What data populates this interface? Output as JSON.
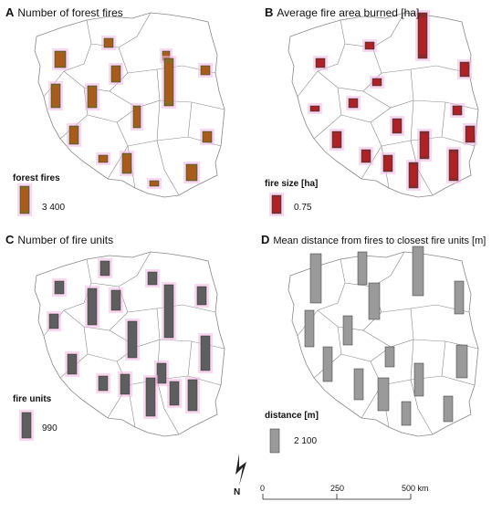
{
  "panels": {
    "a": {
      "letter": "A",
      "title": "Number of forest fires",
      "legend_title": "forest fires",
      "legend_value": "3 400",
      "bar_color": "#8a6a1e",
      "bar_accent": "#d4481a",
      "halo": "#f7b8e6"
    },
    "b": {
      "letter": "B",
      "title": "Average fire area burned [ha]",
      "legend_title": "fire size [ha]",
      "legend_value": "0.75",
      "bar_color": "#8b2a2a",
      "bar_accent": "#e0141e",
      "halo": "#f7b8e6"
    },
    "c": {
      "letter": "C",
      "title": "Number of fire units",
      "legend_title": "fire units",
      "legend_value": "990",
      "bar_color": "#5e5e5e",
      "halo": "#f7b8e6"
    },
    "d": {
      "letter": "D",
      "title": "Mean distance from fires to closest fire units [m]",
      "legend_title": "distance [m]",
      "legend_value": "2 100",
      "bar_color": "#9a9a9a"
    }
  },
  "scale_bar": {
    "labels": [
      "0",
      "250",
      "500 km"
    ]
  },
  "north_arrow": {
    "label": "N"
  }
}
